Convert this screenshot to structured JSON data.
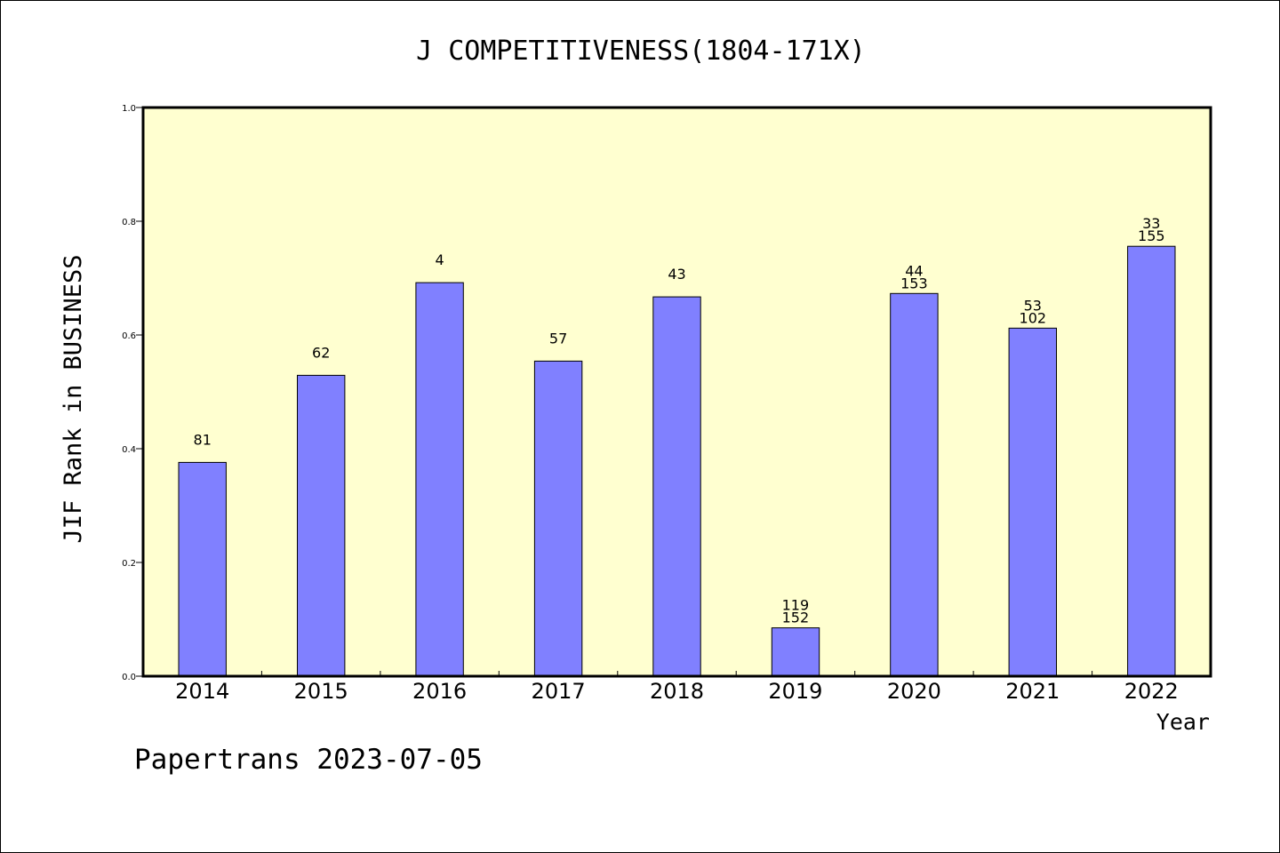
{
  "chart_data": {
    "type": "bar",
    "title": "J COMPETITIVENESS(1804-171X)",
    "xlabel": "Year",
    "ylabel": "JIF Rank in BUSINESS",
    "ylim": [
      0,
      1.0
    ],
    "yticks": [
      "0.0",
      "0.2",
      "0.4",
      "0.6",
      "0.8",
      "1.0"
    ],
    "grid": false,
    "categories": [
      "2014",
      "2015",
      "2016",
      "2017",
      "2018",
      "2019",
      "2020",
      "2021",
      "2022"
    ],
    "values": [
      0.376,
      0.529,
      0.692,
      0.554,
      0.667,
      0.085,
      0.673,
      0.612,
      0.756
    ],
    "labels": [
      [
        "81"
      ],
      [
        "62"
      ],
      [
        "4"
      ],
      [
        "57"
      ],
      [
        "43"
      ],
      [
        "119",
        "152"
      ],
      [
        "44",
        "153"
      ],
      [
        "53",
        "102"
      ],
      [
        "33",
        "155"
      ]
    ],
    "colors": {
      "bar": "#8080ff",
      "plot_background": "#ffffd0",
      "axis": "#000000"
    }
  },
  "footer": {
    "text": "Papertrans 2023-07-05"
  }
}
